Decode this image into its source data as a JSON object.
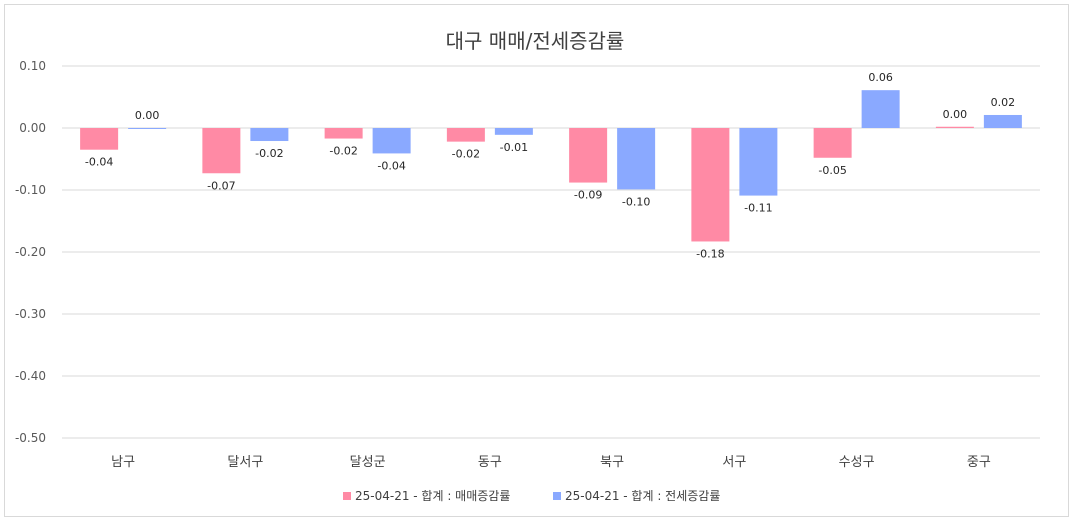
{
  "chart_data": {
    "type": "bar",
    "title": "대구 매매/전세증감률",
    "categories": [
      "남구",
      "달서구",
      "달성군",
      "동구",
      "북구",
      "서구",
      "수성구",
      "중구"
    ],
    "series": [
      {
        "name": "25-04-21 - 합계 : 매매증감률",
        "color": "#ff8aa5",
        "values": [
          -0.035,
          -0.073,
          -0.017,
          -0.022,
          -0.088,
          -0.183,
          -0.048,
          0.002
        ],
        "labels": [
          "-0.04",
          "-0.07",
          "-0.02",
          "-0.02",
          "-0.09",
          "-0.18",
          "-0.05",
          "0.00"
        ]
      },
      {
        "name": "25-04-21 - 합계 : 전세증감률",
        "color": "#8aa9ff",
        "values": [
          0.0,
          -0.021,
          -0.041,
          -0.011,
          -0.099,
          -0.109,
          0.061,
          0.021
        ],
        "labels": [
          "0.00",
          "-0.02",
          "-0.04",
          "-0.01",
          "-0.10",
          "-0.11",
          "0.06",
          "0.02"
        ]
      }
    ],
    "yticks": [
      "0.10",
      "0.00",
      "-0.10",
      "-0.20",
      "-0.30",
      "-0.40",
      "-0.50"
    ],
    "ylim": [
      -0.5,
      0.1
    ],
    "grid": true,
    "legend_position": "bottom"
  }
}
